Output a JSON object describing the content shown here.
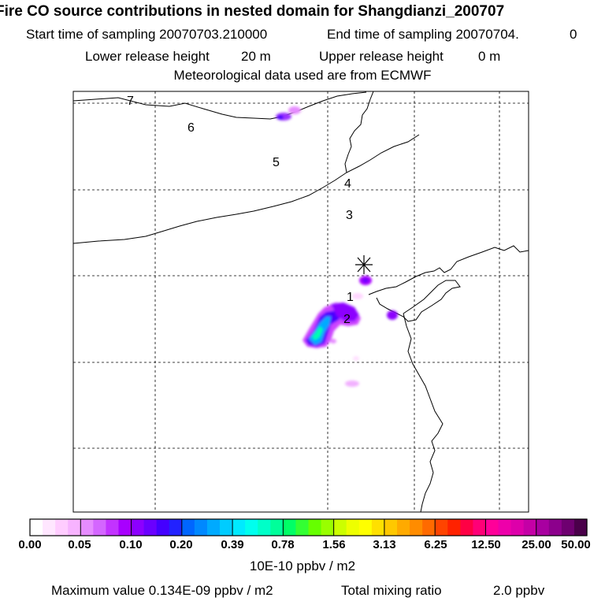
{
  "header": {
    "title": "Fire CO source contributions in nested domain for Shangdianzi_200707",
    "start_label": "Start time of sampling 20070703.210000",
    "end_label": "End time of sampling 20070704.",
    "end_value": "0",
    "lower_label": "Lower release height",
    "lower_value": "20 m",
    "upper_label": "Upper release height",
    "upper_value": "0 m",
    "met_label": "Meteorological data used are from ECMWF"
  },
  "map": {
    "day_labels": [
      "7",
      "6",
      "5",
      "4",
      "3",
      "1",
      "2"
    ],
    "receptor_marker": "asterisk"
  },
  "legend": {
    "colors": [
      "#ffffff",
      "#ffe6ff",
      "#ffccff",
      "#f7b3ff",
      "#e68cff",
      "#d466ff",
      "#c233ff",
      "#a800ff",
      "#8c00ff",
      "#6a00ff",
      "#4400ff",
      "#2222ff",
      "#0066ff",
      "#0088ff",
      "#00aaff",
      "#00ccff",
      "#00eaff",
      "#00ffee",
      "#00ffc8",
      "#00ff9a",
      "#00ff66",
      "#33ff33",
      "#66ff00",
      "#99ff00",
      "#ccff00",
      "#eeff00",
      "#ffff00",
      "#ffe000",
      "#ffc800",
      "#ffaa00",
      "#ff8c00",
      "#ff6a00",
      "#ff4400",
      "#ff2200",
      "#ff0044",
      "#ff0077",
      "#ff0099",
      "#ee00aa",
      "#dd00aa",
      "#c400a6",
      "#a800a0",
      "#8c008c",
      "#6e0070",
      "#4a004a"
    ],
    "ticks": [
      "0.00",
      "0.05",
      "0.10",
      "0.20",
      "0.39",
      "0.78",
      "1.56",
      "3.13",
      "6.25",
      "12.50",
      "25.00",
      "50.00"
    ],
    "unit": "10E-10 ppbv / m2"
  },
  "footer": {
    "max_label": "Maximum value  0.134E-09 ppbv / m2",
    "total_label": "Total mixing ratio",
    "total_value": "2.0 ppbv"
  }
}
